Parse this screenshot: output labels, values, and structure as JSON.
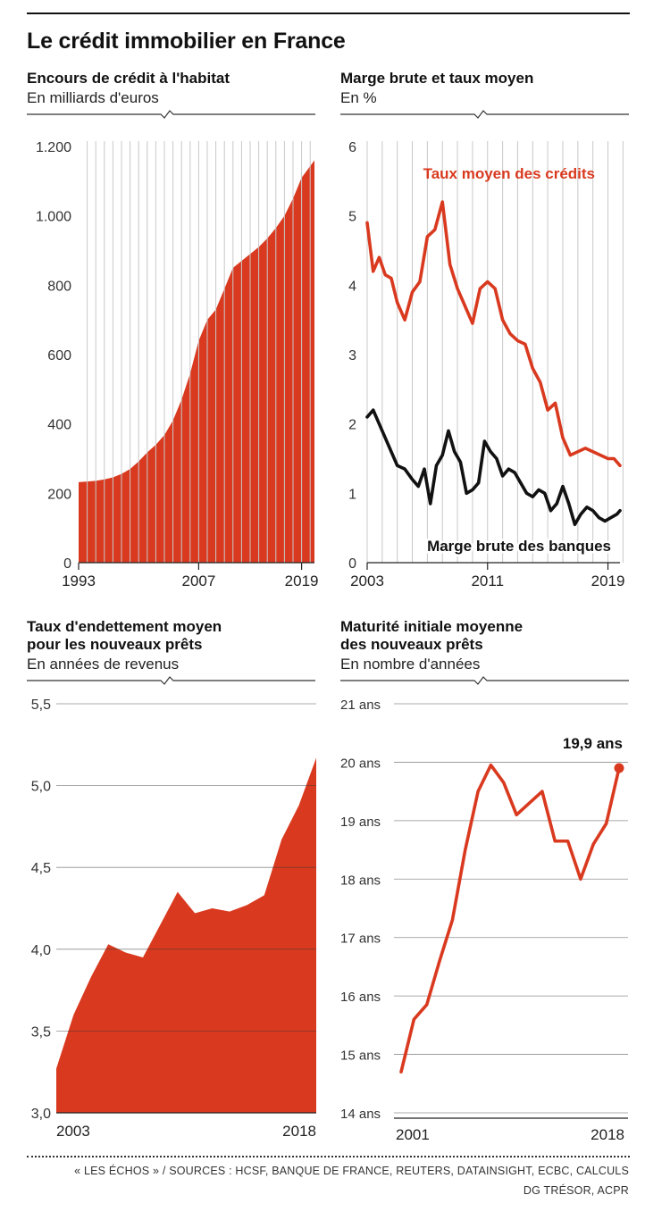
{
  "page": {
    "title": "Le crédit immobilier en France",
    "source": "« LES ÉCHOS » / SOURCES : HCSF, BANQUE DE FRANCE, REUTERS, DATAINSIGHT, ECBC, CALCULS DG TRÉSOR, ACPR"
  },
  "chart_data": [
    {
      "id": "encours",
      "type": "area",
      "title": "Encours de crédit à l'habitat",
      "subtitle": "En milliards d'euros",
      "color": "#d93a1f",
      "ylim": [
        0,
        1200
      ],
      "yticks": [
        0,
        200,
        400,
        600,
        800,
        1000,
        1200
      ],
      "ytick_labels": [
        "0",
        "200",
        "400",
        "600",
        "800",
        "1.000",
        "1.200"
      ],
      "xlim": [
        1993,
        2020.5
      ],
      "xtick_labels": [
        "1993",
        "2007",
        "2019"
      ],
      "xtick_values": [
        1993,
        2007,
        2019
      ],
      "grid": "vertical",
      "series": [
        {
          "x": [
            1993,
            1994,
            1995,
            1996,
            1997,
            1998,
            1999,
            2000,
            2001,
            2002,
            2003,
            2004,
            2005,
            2006,
            2007,
            2008,
            2009,
            2010,
            2011,
            2012,
            2013,
            2014,
            2015,
            2016,
            2017,
            2018,
            2019,
            2020.5
          ],
          "values": [
            232,
            234,
            236,
            240,
            246,
            256,
            270,
            292,
            318,
            340,
            368,
            410,
            470,
            545,
            640,
            700,
            730,
            790,
            850,
            870,
            890,
            910,
            935,
            965,
            1000,
            1050,
            1110,
            1160
          ]
        }
      ]
    },
    {
      "id": "marge",
      "type": "line",
      "title": "Marge brute et taux moyen",
      "subtitle": "En %",
      "ylim": [
        0,
        6
      ],
      "yticks": [
        0,
        1,
        2,
        3,
        4,
        5,
        6
      ],
      "ytick_labels": [
        "0",
        "1",
        "2",
        "3",
        "4",
        "5",
        "6"
      ],
      "xlim": [
        2003,
        2019.8
      ],
      "xtick_labels": [
        "2003",
        "2011",
        "2019"
      ],
      "xtick_values": [
        2003,
        2011,
        2019
      ],
      "grid": "vertical",
      "series": [
        {
          "name": "Taux moyen des crédits",
          "color": "#d93a1f",
          "x": [
            2003,
            2003.4,
            2003.8,
            2004.2,
            2004.6,
            2005,
            2005.5,
            2006,
            2006.5,
            2007,
            2007.5,
            2008,
            2008.5,
            2009,
            2009.5,
            2010,
            2010.5,
            2011,
            2011.5,
            2012,
            2012.5,
            2013,
            2013.5,
            2014,
            2014.5,
            2015,
            2015.5,
            2016,
            2016.5,
            2017,
            2017.5,
            2018,
            2018.5,
            2019,
            2019.4,
            2019.8
          ],
          "values": [
            4.9,
            4.2,
            4.4,
            4.15,
            4.1,
            3.75,
            3.5,
            3.9,
            4.05,
            4.7,
            4.8,
            5.2,
            4.3,
            3.95,
            3.7,
            3.45,
            3.95,
            4.05,
            3.95,
            3.5,
            3.3,
            3.2,
            3.15,
            2.8,
            2.6,
            2.2,
            2.3,
            1.8,
            1.55,
            1.6,
            1.65,
            1.6,
            1.55,
            1.5,
            1.5,
            1.4
          ]
        },
        {
          "name": "Marge brute des banques",
          "color": "#111111",
          "x": [
            2003,
            2003.4,
            2003.8,
            2004.2,
            2004.6,
            2005,
            2005.5,
            2006,
            2006.4,
            2006.8,
            2007.2,
            2007.6,
            2008,
            2008.4,
            2008.8,
            2009.2,
            2009.6,
            2010,
            2010.4,
            2010.8,
            2011.2,
            2011.6,
            2012,
            2012.4,
            2012.8,
            2013.2,
            2013.6,
            2014,
            2014.4,
            2014.8,
            2015.2,
            2015.6,
            2016,
            2016.4,
            2016.8,
            2017.2,
            2017.6,
            2018,
            2018.4,
            2018.8,
            2019.2,
            2019.6,
            2019.8
          ],
          "values": [
            2.1,
            2.2,
            2.0,
            1.8,
            1.6,
            1.4,
            1.35,
            1.2,
            1.1,
            1.35,
            0.85,
            1.4,
            1.55,
            1.9,
            1.6,
            1.45,
            1.0,
            1.05,
            1.15,
            1.75,
            1.6,
            1.5,
            1.25,
            1.35,
            1.3,
            1.15,
            1.0,
            0.95,
            1.05,
            1.0,
            0.75,
            0.85,
            1.1,
            0.85,
            0.55,
            0.7,
            0.8,
            0.75,
            0.65,
            0.6,
            0.65,
            0.7,
            0.75
          ]
        }
      ]
    },
    {
      "id": "endettement",
      "type": "area",
      "title": "Taux d'endettement moyen\npour les nouveaux prêts",
      "subtitle": "En années de revenus",
      "color": "#d93a1f",
      "ylim": [
        3.0,
        5.5
      ],
      "yticks": [
        3.0,
        3.5,
        4.0,
        4.5,
        5.0,
        5.5
      ],
      "ytick_labels": [
        "3,0",
        "3,5",
        "4,0",
        "4,5",
        "5,0",
        "5,5"
      ],
      "xlim": [
        2003,
        2018
      ],
      "xtick_labels": [
        "2003",
        "2018"
      ],
      "xtick_values": [
        2003,
        2018
      ],
      "grid": "horizontal",
      "series": [
        {
          "x": [
            2003,
            2004,
            2005,
            2006,
            2007,
            2008,
            2009,
            2010,
            2011,
            2012,
            2013,
            2014,
            2015,
            2016,
            2017,
            2018
          ],
          "values": [
            3.27,
            3.6,
            3.83,
            4.03,
            3.98,
            3.95,
            4.15,
            4.35,
            4.22,
            4.25,
            4.23,
            4.27,
            4.33,
            4.67,
            4.88,
            5.17
          ]
        }
      ]
    },
    {
      "id": "maturite",
      "type": "line",
      "title": "Maturité initiale moyenne\ndes nouveaux prêts",
      "subtitle": "En nombre d'années",
      "ylim": [
        14,
        21
      ],
      "yticks": [
        14,
        15,
        16,
        17,
        18,
        19,
        20,
        21
      ],
      "ytick_labels": [
        "14 ans",
        "15 ans",
        "16 ans",
        "17 ans",
        "18 ans",
        "19 ans",
        "20 ans",
        "21 ans"
      ],
      "xlim": [
        2001,
        2018
      ],
      "xtick_labels": [
        "2001",
        "2018"
      ],
      "xtick_values": [
        2001,
        2018
      ],
      "grid": "horizontal",
      "annotation": "19,9 ans",
      "series": [
        {
          "color": "#d93a1f",
          "x": [
            2001,
            2002,
            2003,
            2004,
            2005,
            2006,
            2007,
            2008,
            2009,
            2010,
            2011,
            2012,
            2013,
            2014,
            2015,
            2016,
            2017,
            2018
          ],
          "values": [
            14.7,
            15.6,
            15.85,
            16.6,
            17.3,
            18.5,
            19.5,
            19.95,
            19.65,
            19.1,
            19.3,
            19.5,
            18.65,
            18.65,
            18.0,
            18.6,
            18.95,
            19.9
          ]
        }
      ]
    }
  ]
}
